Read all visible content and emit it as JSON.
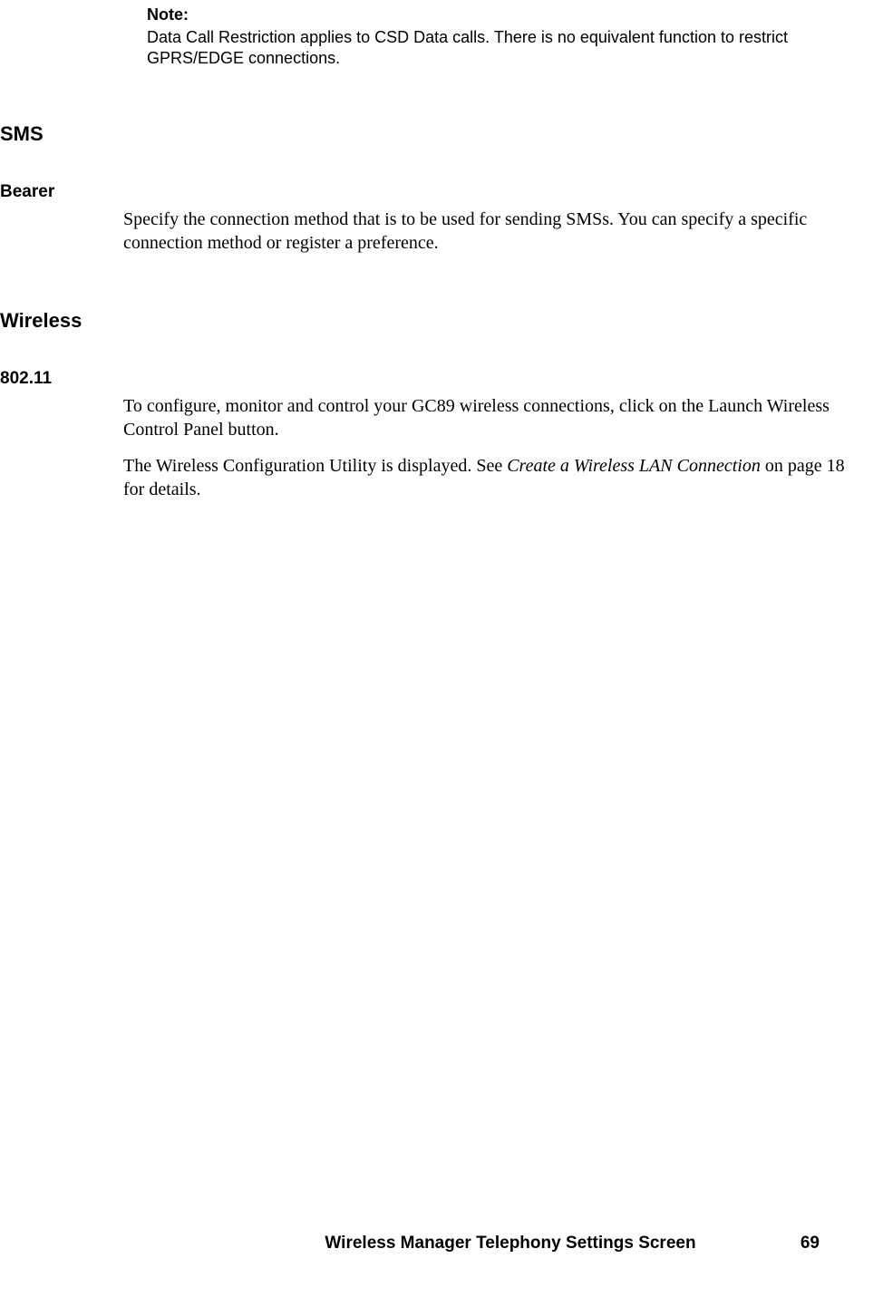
{
  "note": {
    "label": "Note:",
    "body": "Data Call Restriction applies to CSD Data calls. There is no equivalent function to restrict GPRS/EDGE connections."
  },
  "sections": {
    "sms": {
      "heading": "SMS",
      "bearer": {
        "heading": "Bearer",
        "body": "Specify the connection method that is to be used for sending SMSs. You can specify a specific connection method or register a preference."
      }
    },
    "wireless": {
      "heading": "Wireless",
      "w80211": {
        "heading": "802.11",
        "body1": "To configure, monitor and control your GC89 wireless connections, click on the Launch Wireless Control Panel button.",
        "body2_pre": "The Wireless Configuration Utility is displayed. See ",
        "body2_ref": "Create a Wireless LAN Connection",
        "body2_post": " on page 18 for details."
      }
    }
  },
  "footer": {
    "title": "Wireless Manager Telephony Settings Screen",
    "page": "69"
  }
}
